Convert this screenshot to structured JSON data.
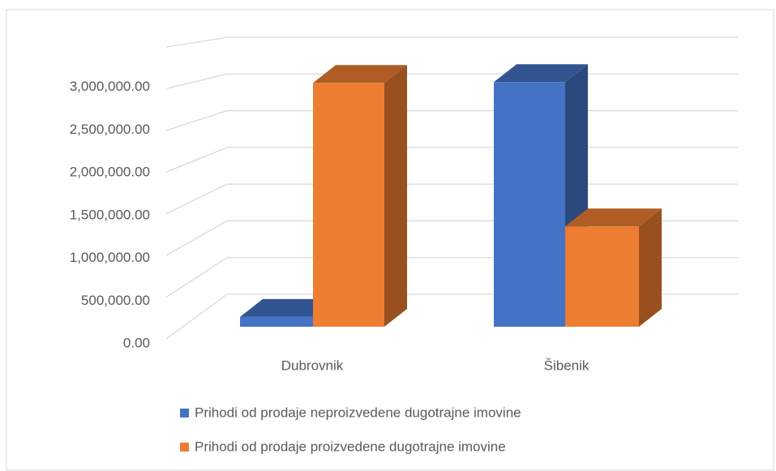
{
  "chart_data": {
    "type": "bar3d",
    "categories": [
      "Dubrovnik",
      "Šibenik"
    ],
    "series": [
      {
        "name": "Prihodi od prodaje neproizvedene dugotrajne imovine",
        "color": "#4472c4",
        "values": [
          120000,
          3000000
        ]
      },
      {
        "name": "Prihodi od prodaje proizvedene dugotrajne imovine",
        "color": "#ed7d31",
        "values": [
          2990000,
          1230000
        ]
      }
    ],
    "ylim": [
      0,
      3500000
    ],
    "yticks": [
      {
        "value": 0,
        "label": "0.00"
      },
      {
        "value": 500000,
        "label": "500,000.00"
      },
      {
        "value": 1000000,
        "label": "1,000,000.00"
      },
      {
        "value": 1500000,
        "label": "1,500,000.00"
      },
      {
        "value": 2000000,
        "label": "2,000,000.00"
      },
      {
        "value": 2500000,
        "label": "2,500,000.00"
      },
      {
        "value": 3000000,
        "label": "3,000,000.00"
      }
    ],
    "grid": true,
    "legend": "bottom"
  }
}
